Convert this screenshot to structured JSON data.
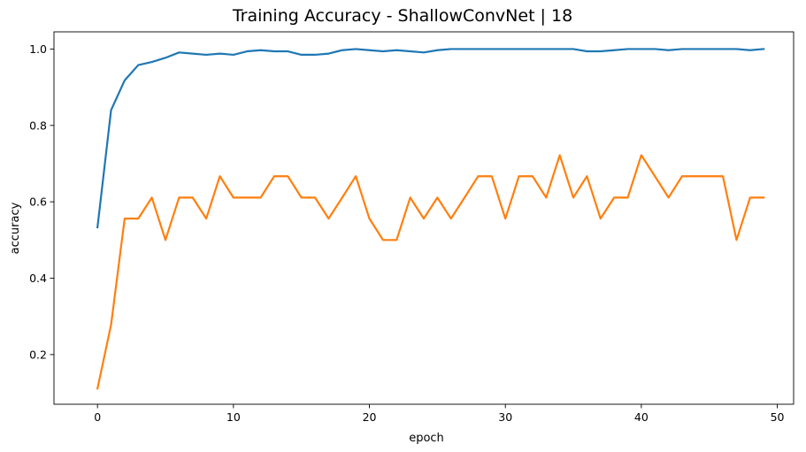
{
  "chart_data": {
    "type": "line",
    "title": "Training Accuracy - ShallowConvNet | 18",
    "xlabel": "epoch",
    "ylabel": "accuracy",
    "xlim": [
      -3.2,
      51.2
    ],
    "ylim": [
      0.07,
      1.045
    ],
    "xticks": [
      0,
      10,
      20,
      30,
      40,
      50
    ],
    "yticks": [
      0.2,
      0.4,
      0.6,
      0.8,
      1.0
    ],
    "xtick_labels": [
      "0",
      "10",
      "20",
      "30",
      "40",
      "50"
    ],
    "ytick_labels": [
      "0.2",
      "0.4",
      "0.6",
      "0.8",
      "1.0"
    ],
    "grid": false,
    "legend": false,
    "x": [
      0,
      1,
      2,
      3,
      4,
      5,
      6,
      7,
      8,
      9,
      10,
      11,
      12,
      13,
      14,
      15,
      16,
      17,
      18,
      19,
      20,
      21,
      22,
      23,
      24,
      25,
      26,
      27,
      28,
      29,
      30,
      31,
      32,
      33,
      34,
      35,
      36,
      37,
      38,
      39,
      40,
      41,
      42,
      43,
      44,
      45,
      46,
      47,
      48,
      49
    ],
    "series": [
      {
        "color": "#1f77b4",
        "values": [
          0.533,
          0.84,
          0.918,
          0.958,
          0.966,
          0.977,
          0.991,
          0.988,
          0.985,
          0.988,
          0.985,
          0.994,
          0.997,
          0.994,
          0.994,
          0.985,
          0.985,
          0.988,
          0.997,
          1.0,
          0.997,
          0.994,
          0.997,
          0.994,
          0.991,
          0.997,
          1.0,
          1.0,
          1.0,
          1.0,
          1.0,
          1.0,
          1.0,
          1.0,
          1.0,
          1.0,
          0.994,
          0.994,
          0.997,
          1.0,
          1.0,
          1.0,
          0.997,
          1.0,
          1.0,
          1.0,
          1.0,
          1.0,
          0.997,
          1.0
        ]
      },
      {
        "color": "#ff7f0e",
        "values": [
          0.111,
          0.278,
          0.556,
          0.556,
          0.611,
          0.5,
          0.611,
          0.611,
          0.556,
          0.667,
          0.611,
          0.611,
          0.611,
          0.667,
          0.667,
          0.611,
          0.611,
          0.556,
          0.611,
          0.667,
          0.556,
          0.5,
          0.5,
          0.611,
          0.556,
          0.611,
          0.556,
          0.611,
          0.667,
          0.667,
          0.556,
          0.667,
          0.667,
          0.611,
          0.722,
          0.611,
          0.667,
          0.556,
          0.611,
          0.611,
          0.722,
          0.667,
          0.611,
          0.667,
          0.667,
          0.667,
          0.667,
          0.5,
          0.611,
          0.611
        ]
      }
    ]
  }
}
